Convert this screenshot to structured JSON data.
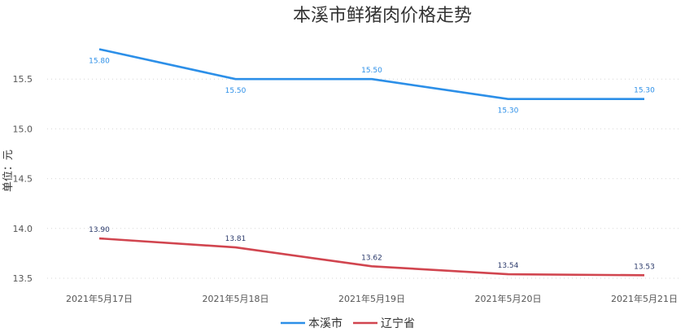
{
  "chart_data": {
    "type": "line",
    "title": "本溪市鲜猪肉价格走势",
    "ylabel": "单位：元",
    "xlabel": "",
    "categories": [
      "2021年5月17日",
      "2021年5月18日",
      "2021年5月19日",
      "2021年5月20日",
      "2021年5月21日"
    ],
    "ylim": [
      13.5,
      15.75
    ],
    "yticks": [
      "13.5",
      "14.0",
      "14.5",
      "15.0",
      "15.5"
    ],
    "grid": true,
    "legend_position": "bottom",
    "series": [
      {
        "name": "本溪市",
        "color": "#2c8fe8",
        "values": [
          15.8,
          15.5,
          15.5,
          15.3,
          15.3
        ],
        "labels": [
          "15.80",
          "15.50",
          "15.50",
          "15.30",
          "15.30"
        ]
      },
      {
        "name": "辽宁省",
        "color": "#d1454f",
        "values": [
          13.9,
          13.81,
          13.62,
          13.54,
          13.53
        ],
        "labels": [
          "13.90",
          "13.81",
          "13.62",
          "13.54",
          "13.53"
        ]
      }
    ]
  }
}
